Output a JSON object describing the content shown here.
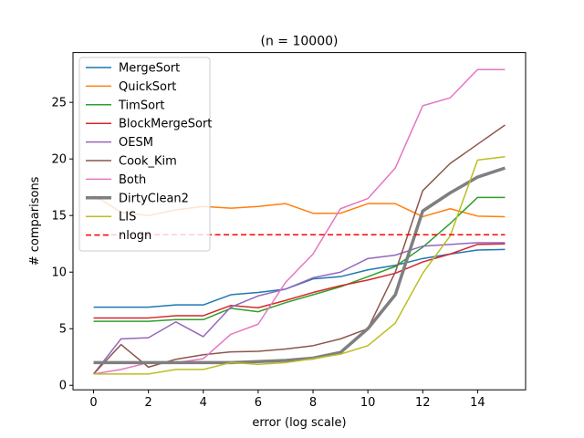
{
  "chart_data": {
    "type": "line",
    "title": "(n = 10000)",
    "xlabel": "error (log scale)",
    "ylabel": "# comparisons",
    "xlim": [
      -0.75,
      15.75
    ],
    "ylim": [
      -0.4,
      29.4
    ],
    "xticks": [
      0,
      2,
      4,
      6,
      8,
      10,
      12,
      14
    ],
    "yticks": [
      0,
      5,
      10,
      15,
      20,
      25
    ],
    "grid": false,
    "legend_position": "upper-left",
    "x": [
      0,
      1,
      2,
      3,
      4,
      5,
      6,
      7,
      8,
      9,
      10,
      11,
      12,
      13,
      14,
      15
    ],
    "series": [
      {
        "name": "MergeSort",
        "color": "#1f77b4",
        "width": 1.5,
        "dash": "",
        "values": [
          6.9,
          6.9,
          6.9,
          7.1,
          7.1,
          8.0,
          8.2,
          8.5,
          9.4,
          9.6,
          10.2,
          10.6,
          11.2,
          11.6,
          11.95,
          12.0
        ]
      },
      {
        "name": "QuickSort",
        "color": "#ff7f0e",
        "width": 1.5,
        "dash": "",
        "values": [
          16.8,
          15.3,
          15.0,
          15.5,
          15.8,
          15.65,
          15.8,
          16.05,
          15.2,
          15.2,
          16.05,
          16.05,
          14.9,
          15.6,
          14.95,
          14.9
        ]
      },
      {
        "name": "TimSort",
        "color": "#2ca02c",
        "width": 1.5,
        "dash": "",
        "values": [
          5.65,
          5.65,
          5.65,
          5.8,
          5.8,
          6.8,
          6.5,
          7.3,
          8.0,
          8.7,
          9.6,
          10.5,
          12.2,
          14.3,
          16.6,
          16.6
        ]
      },
      {
        "name": "BlockMergeSort",
        "color": "#d62728",
        "width": 1.5,
        "dash": "",
        "values": [
          5.95,
          5.95,
          5.95,
          6.15,
          6.15,
          7.05,
          6.85,
          7.5,
          8.2,
          8.8,
          9.3,
          9.9,
          10.9,
          11.6,
          12.45,
          12.5
        ]
      },
      {
        "name": "OESM",
        "color": "#9467bd",
        "width": 1.5,
        "dash": "",
        "values": [
          1.0,
          4.1,
          4.2,
          5.6,
          4.3,
          6.9,
          7.9,
          8.5,
          9.5,
          10.0,
          11.2,
          11.5,
          12.3,
          12.45,
          12.6,
          12.6
        ]
      },
      {
        "name": "Cook_Kim",
        "color": "#8c564b",
        "width": 1.5,
        "dash": "",
        "values": [
          1.0,
          3.6,
          1.6,
          2.3,
          2.7,
          2.95,
          3.0,
          3.2,
          3.5,
          4.1,
          5.0,
          10.0,
          17.2,
          19.6,
          21.3,
          23.0
        ]
      },
      {
        "name": "Both",
        "color": "#e377c2",
        "width": 1.5,
        "dash": "",
        "values": [
          1.0,
          1.4,
          2.0,
          2.0,
          2.35,
          4.5,
          5.4,
          9.1,
          11.6,
          15.6,
          16.5,
          19.2,
          24.7,
          25.4,
          27.9,
          27.9
        ]
      },
      {
        "name": "DirtyClean2",
        "color": "#7f7f7f",
        "width": 3.5,
        "dash": "",
        "values": [
          2.0,
          2.0,
          2.0,
          2.0,
          2.0,
          2.0,
          2.1,
          2.2,
          2.4,
          2.9,
          5.0,
          8.0,
          15.4,
          17.0,
          18.4,
          19.2
        ]
      },
      {
        "name": "LIS",
        "color": "#bcbd22",
        "width": 1.5,
        "dash": "",
        "values": [
          1.0,
          1.0,
          1.0,
          1.4,
          1.4,
          2.0,
          1.85,
          2.0,
          2.35,
          2.75,
          3.5,
          5.5,
          9.9,
          13.2,
          19.9,
          20.2
        ]
      },
      {
        "name": "nlogn",
        "color": "#ff0000",
        "width": 1.5,
        "dash": "6,3.5",
        "values": [
          13.3,
          13.3,
          13.3,
          13.3,
          13.3,
          13.3,
          13.3,
          13.3,
          13.3,
          13.3,
          13.3,
          13.3,
          13.3,
          13.3,
          13.3,
          13.3
        ]
      }
    ]
  }
}
